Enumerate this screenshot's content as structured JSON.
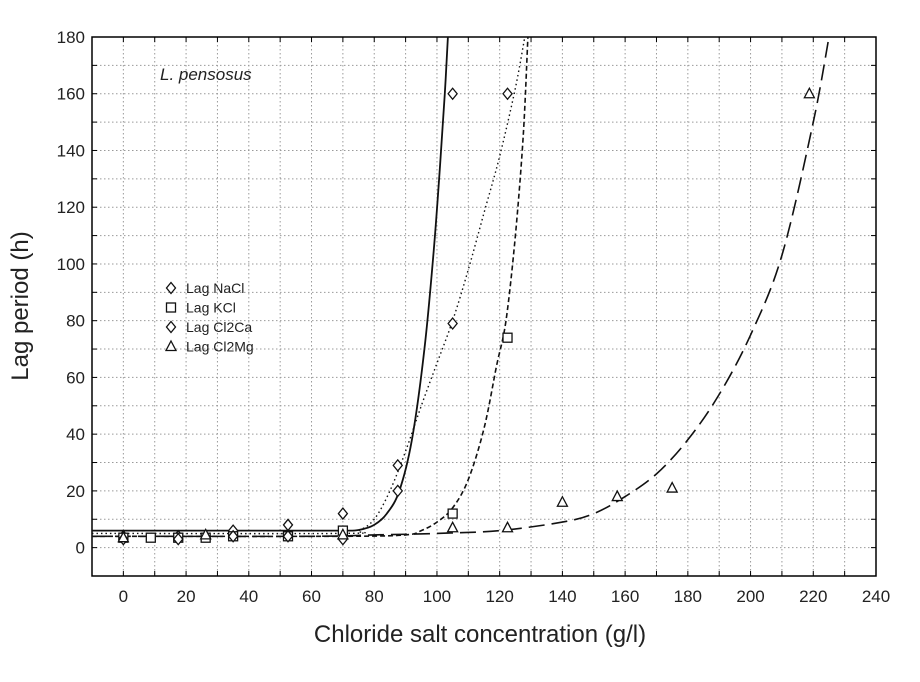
{
  "chart_data": {
    "type": "scatter",
    "title": "",
    "annotation": "L. pensosus",
    "xlabel": "Chloride salt concentration (g/l)",
    "ylabel": "Lag period (h)",
    "xlim": [
      -10,
      240
    ],
    "ylim": [
      -10,
      180
    ],
    "xticks": [
      0,
      20,
      40,
      60,
      80,
      100,
      120,
      140,
      160,
      180,
      200,
      220,
      240
    ],
    "yticks": [
      0,
      20,
      40,
      60,
      80,
      100,
      120,
      140,
      160,
      180
    ],
    "grid": true,
    "legend_position": "left-middle",
    "series": [
      {
        "name": "Lag NaCl",
        "marker": "diamond",
        "points": [
          [
            0,
            4
          ],
          [
            17.5,
            4
          ],
          [
            35,
            6
          ],
          [
            52.5,
            8
          ],
          [
            70,
            12
          ],
          [
            87.5,
            20
          ],
          [
            105,
            160
          ]
        ],
        "fit_style": "solid",
        "fit": [
          [
            -10,
            6
          ],
          [
            60,
            6
          ],
          [
            70,
            6
          ],
          [
            75,
            6.2
          ],
          [
            80,
            8
          ],
          [
            84,
            12
          ],
          [
            88,
            20
          ],
          [
            92,
            38
          ],
          [
            96,
            70
          ],
          [
            99,
            105
          ],
          [
            101,
            135
          ],
          [
            102.5,
            160
          ],
          [
            103.5,
            180
          ]
        ]
      },
      {
        "name": "Lag KCl",
        "marker": "square",
        "points": [
          [
            0,
            3.5
          ],
          [
            8.75,
            3.5
          ],
          [
            17.5,
            3.5
          ],
          [
            26.25,
            3.5
          ],
          [
            35,
            4
          ],
          [
            52.5,
            4
          ],
          [
            70,
            6
          ],
          [
            105,
            12
          ],
          [
            122.5,
            74
          ]
        ],
        "fit_style": "short-dash",
        "fit": [
          [
            -10,
            4
          ],
          [
            70,
            4
          ],
          [
            90,
            4.5
          ],
          [
            95,
            6
          ],
          [
            100,
            9
          ],
          [
            105,
            14
          ],
          [
            110,
            24
          ],
          [
            115,
            42
          ],
          [
            119,
            64
          ],
          [
            122,
            80
          ],
          [
            125,
            110
          ],
          [
            127.5,
            145
          ],
          [
            129,
            180
          ]
        ]
      },
      {
        "name": "Lag Cl2Ca",
        "marker": "diamond",
        "points": [
          [
            0,
            3
          ],
          [
            17.5,
            3
          ],
          [
            35,
            4
          ],
          [
            52.5,
            4
          ],
          [
            70,
            3
          ],
          [
            87.5,
            29
          ],
          [
            105,
            79
          ],
          [
            122.5,
            160
          ]
        ],
        "fit_style": "dotted",
        "fit": [
          [
            -10,
            5
          ],
          [
            70,
            5
          ],
          [
            75,
            6
          ],
          [
            80,
            10
          ],
          [
            85,
            20
          ],
          [
            90,
            34
          ],
          [
            95,
            50
          ],
          [
            100,
            65
          ],
          [
            105,
            80
          ],
          [
            110,
            98
          ],
          [
            115,
            118
          ],
          [
            120,
            138
          ],
          [
            125,
            162
          ],
          [
            128,
            180
          ]
        ]
      },
      {
        "name": "Lag Cl2Mg",
        "marker": "triangle",
        "points": [
          [
            0,
            3.5
          ],
          [
            26.25,
            4.5
          ],
          [
            70,
            4.5
          ],
          [
            105,
            7
          ],
          [
            122.5,
            7
          ],
          [
            140,
            16
          ],
          [
            157.5,
            18
          ],
          [
            175,
            21
          ],
          [
            218.75,
            160
          ]
        ],
        "fit_style": "long-dash",
        "fit": [
          [
            -10,
            4
          ],
          [
            60,
            4
          ],
          [
            80,
            4.5
          ],
          [
            100,
            5
          ],
          [
            120,
            6
          ],
          [
            140,
            9
          ],
          [
            150,
            12
          ],
          [
            160,
            18
          ],
          [
            170,
            26
          ],
          [
            180,
            38
          ],
          [
            190,
            54
          ],
          [
            200,
            75
          ],
          [
            210,
            103
          ],
          [
            220,
            150
          ],
          [
            225,
            180
          ]
        ]
      }
    ]
  }
}
